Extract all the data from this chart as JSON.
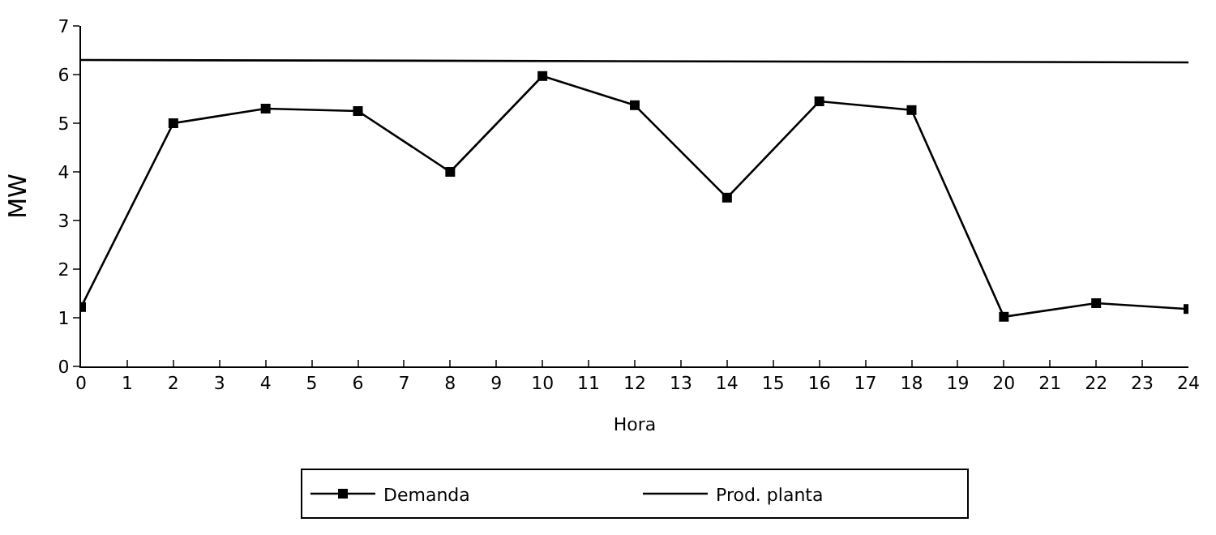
{
  "chart_data": {
    "type": "line",
    "xlabel": "Hora",
    "ylabel": "MW",
    "xlim": [
      0,
      24
    ],
    "xticks": [
      0,
      1,
      2,
      3,
      4,
      5,
      6,
      7,
      8,
      9,
      10,
      11,
      12,
      13,
      14,
      15,
      16,
      17,
      18,
      19,
      20,
      21,
      22,
      23,
      24
    ],
    "ylim": [
      0,
      7
    ],
    "yticks": [
      0,
      1,
      2,
      3,
      4,
      5,
      6,
      7
    ],
    "legend": "bottom",
    "series": [
      {
        "name": "Demanda",
        "color": "#000000",
        "marker": "square",
        "x": [
          0,
          2,
          4,
          6,
          8,
          10,
          12,
          14,
          16,
          18,
          20,
          22,
          24
        ],
        "values": [
          1.22,
          5.0,
          5.3,
          5.25,
          4.0,
          5.97,
          5.37,
          3.47,
          5.45,
          5.27,
          1.02,
          1.3,
          1.18
        ]
      },
      {
        "name": "Prod. planta",
        "color": "#000000",
        "marker": "none",
        "x": [
          0,
          24
        ],
        "values": [
          6.3,
          6.25
        ]
      }
    ]
  }
}
